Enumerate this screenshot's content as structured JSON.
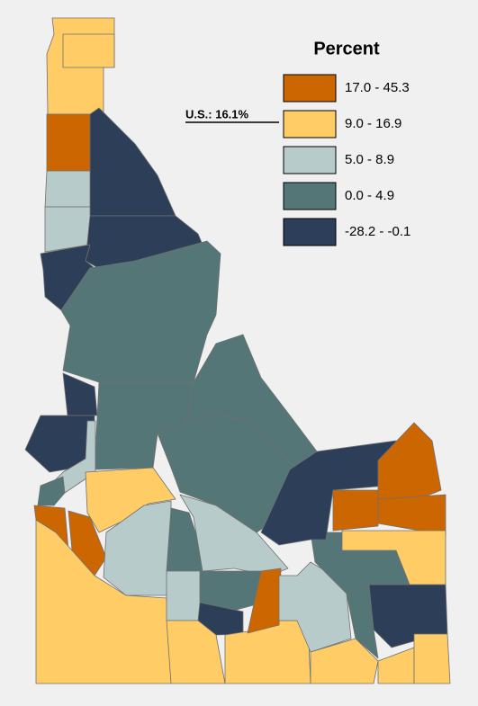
{
  "legend": {
    "title": "Percent",
    "classes": [
      {
        "label": "17.0 - 45.3",
        "color": "#cc6600"
      },
      {
        "label": "9.0 - 16.9",
        "color": "#ffcc66"
      },
      {
        "label": "5.0 - 8.9",
        "color": "#b8cbcb"
      },
      {
        "label": "0.0 - 4.9",
        "color": "#547676"
      },
      {
        "label": "-28.2 - -0.1",
        "color": "#2c3e58"
      }
    ]
  },
  "us_marker": {
    "label": "U.S.: 16.1%"
  }
}
